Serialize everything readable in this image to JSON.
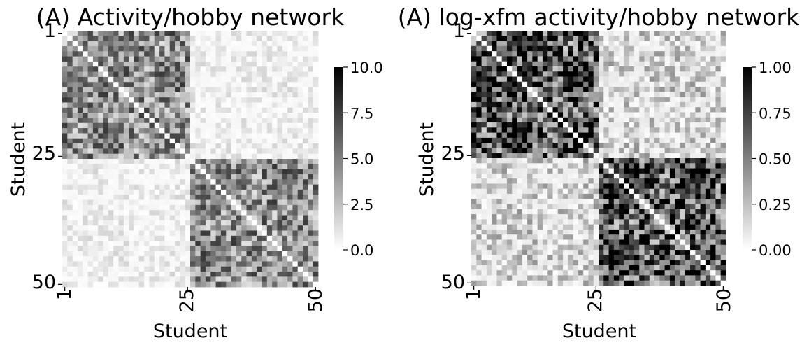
{
  "chart_data": [
    {
      "type": "heatmap",
      "title": "(A) Activity/hobby network",
      "xlabel": "Student",
      "ylabel": "Student",
      "n": 50,
      "communities": [
        [
          1,
          25
        ],
        [
          26,
          50
        ]
      ],
      "x_tick_labels": [
        "1",
        "25",
        "50"
      ],
      "y_tick_labels": [
        "1",
        "25",
        "50"
      ],
      "colormap": "Greys",
      "color_low": "#ffffff",
      "color_high": "#000000",
      "vmin": 0.0,
      "vmax": 10.0,
      "colorbar_ticks": [
        0.0,
        2.5,
        5.0,
        7.5,
        10.0
      ],
      "colorbar_tick_labels": [
        "0.0",
        "2.5",
        "5.0",
        "7.5",
        "10.0"
      ],
      "within_community_mean": 4.5,
      "between_community_mean": 1.0,
      "diagonal": 0
    },
    {
      "type": "heatmap",
      "title": "(A) log-xfm activity/hobby network",
      "xlabel": "Student",
      "ylabel": "Student",
      "n": 50,
      "communities": [
        [
          1,
          25
        ],
        [
          26,
          50
        ]
      ],
      "x_tick_labels": [
        "1",
        "25",
        "50"
      ],
      "y_tick_labels": [
        "1",
        "25",
        "50"
      ],
      "colormap": "Greys",
      "color_low": "#ffffff",
      "color_high": "#000000",
      "vmin": 0.0,
      "vmax": 1.0,
      "colorbar_ticks": [
        0.0,
        0.25,
        0.5,
        0.75,
        1.0
      ],
      "colorbar_tick_labels": [
        "0.00",
        "0.25",
        "0.50",
        "0.75",
        "1.00"
      ],
      "within_community_mean": 0.7,
      "between_community_mean": 0.25,
      "diagonal": 0
    }
  ]
}
